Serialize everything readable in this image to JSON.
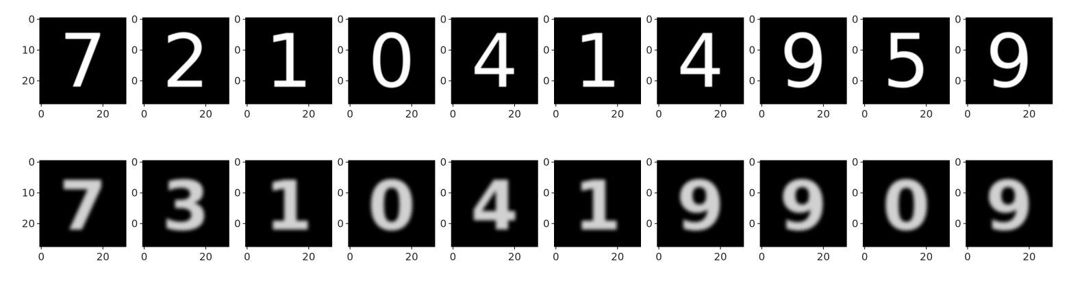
{
  "figure": {
    "description_rows": [
      "original-digits",
      "reconstructed-digits"
    ],
    "rows": [
      {
        "row": "top",
        "panels": [
          {
            "digit": "7",
            "glyph": "7"
          },
          {
            "digit": "2",
            "glyph": "2"
          },
          {
            "digit": "1",
            "glyph": "1"
          },
          {
            "digit": "0",
            "glyph": "0"
          },
          {
            "digit": "4",
            "glyph": "4"
          },
          {
            "digit": "1",
            "glyph": "1"
          },
          {
            "digit": "4",
            "glyph": "4"
          },
          {
            "digit": "9",
            "glyph": "9"
          },
          {
            "digit": "5",
            "glyph": "5"
          },
          {
            "digit": "9",
            "glyph": "9"
          }
        ]
      },
      {
        "row": "bottom",
        "panels": [
          {
            "digit": "7",
            "glyph": "7"
          },
          {
            "digit": "3",
            "glyph": "3"
          },
          {
            "digit": "1",
            "glyph": "1"
          },
          {
            "digit": "0",
            "glyph": "0"
          },
          {
            "digit": "4",
            "glyph": "4"
          },
          {
            "digit": "1",
            "glyph": "1"
          },
          {
            "digit": "9",
            "glyph": "9"
          },
          {
            "digit": "9",
            "glyph": "9"
          },
          {
            "digit": "0",
            "glyph": "0"
          },
          {
            "digit": "9",
            "glyph": "9"
          }
        ]
      }
    ],
    "axis": {
      "y_ticks": [
        "0",
        "10",
        "20"
      ],
      "y_tick_values": [
        0,
        10,
        20
      ],
      "x_ticks": [
        "0",
        "20"
      ],
      "x_tick_values": [
        0,
        20
      ],
      "range": [
        0,
        28
      ]
    },
    "colors": {
      "image_background": "#000000",
      "digit": "#ffffff",
      "tick_text": "#262626"
    }
  }
}
